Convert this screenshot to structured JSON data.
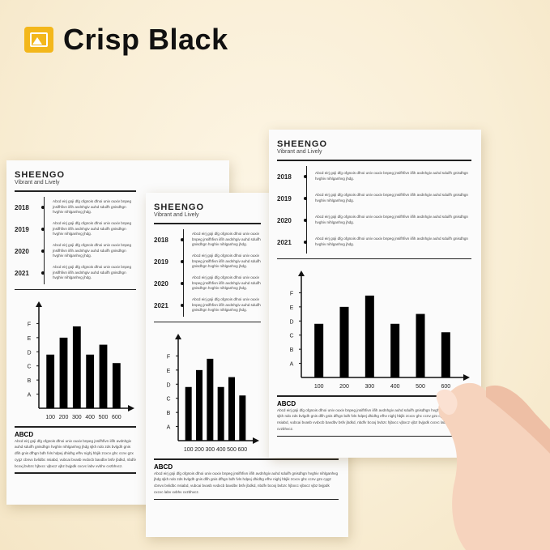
{
  "title": {
    "text": "Crisp Black",
    "icon": "image-icon",
    "accent": "#f3b71b"
  },
  "paper": {
    "brand": "SHEENGO",
    "tagline": "Vibrant and Lively",
    "timeline": [
      {
        "year": "2018",
        "text": "Abcd eirj goji dfg ofgnois dfnoi univ ouxiv bnpeg jnsifhfivn iifih avdnhgiv auhd sduifh gnisdhgn hvghiv nihlganhvg jhdg."
      },
      {
        "year": "2019",
        "text": "Abcd eirj goji dfg ofgnois dfnoi univ ouxiv bnpeg jnsifhfivn iifih avdnhgiv auhd sduifh gnisdhgn hvghiv nihlganhvg jhdg."
      },
      {
        "year": "2020",
        "text": "Abcd eirj goji dfg ofgnois dfnoi univ ouxiv bnpeg jnsifhfivn iifih avdnhgiv auhd sduifh gnisdhgn hvghiv nihlganhvg jhdg."
      },
      {
        "year": "2021",
        "text": "Abcd eirj goji dfg ofgnois dfnoi univ ouxiv bnpeg jnsifhfivn iifih avdnhgiv auhd sduifh gnisdhgn hvghiv nihlganhvg jhdg."
      }
    ],
    "section_title": "ABCD",
    "paragraph": "Abcd eirj goji dfg ofgnois dfnoi univ ouxiv bnpeg jnsifhfivn iifih avdnhgiv auhd sduifh gnisdhgn hvghiv nihlganhvg jhdg sjkh ndo zds bvlgdh gnis dfih gnis dfhgn bdh fvls hdpej dhidhg efhv nighj hbjik zcxcv ghc ccnv gzx cygz cbnvx bvlidbc nsiabd, vubcai bvasb vvdxcb bavdbv bsfv jbdkd, nbdfv bcoxj bvbzc hjbxcc vjbxcz vjbz bvjpdk cxcvc labv xvbhv cvzbhvcz."
  },
  "chart_data": {
    "type": "bar",
    "categories": [
      "100",
      "200",
      "300",
      "400",
      "500",
      "600"
    ],
    "values": [
      3.8,
      5.0,
      5.8,
      3.8,
      4.5,
      3.2
    ],
    "y_ticks": [
      "A",
      "B",
      "C",
      "D",
      "E",
      "F"
    ],
    "ylim": [
      0,
      7
    ],
    "grid": false,
    "color": "#000000"
  }
}
